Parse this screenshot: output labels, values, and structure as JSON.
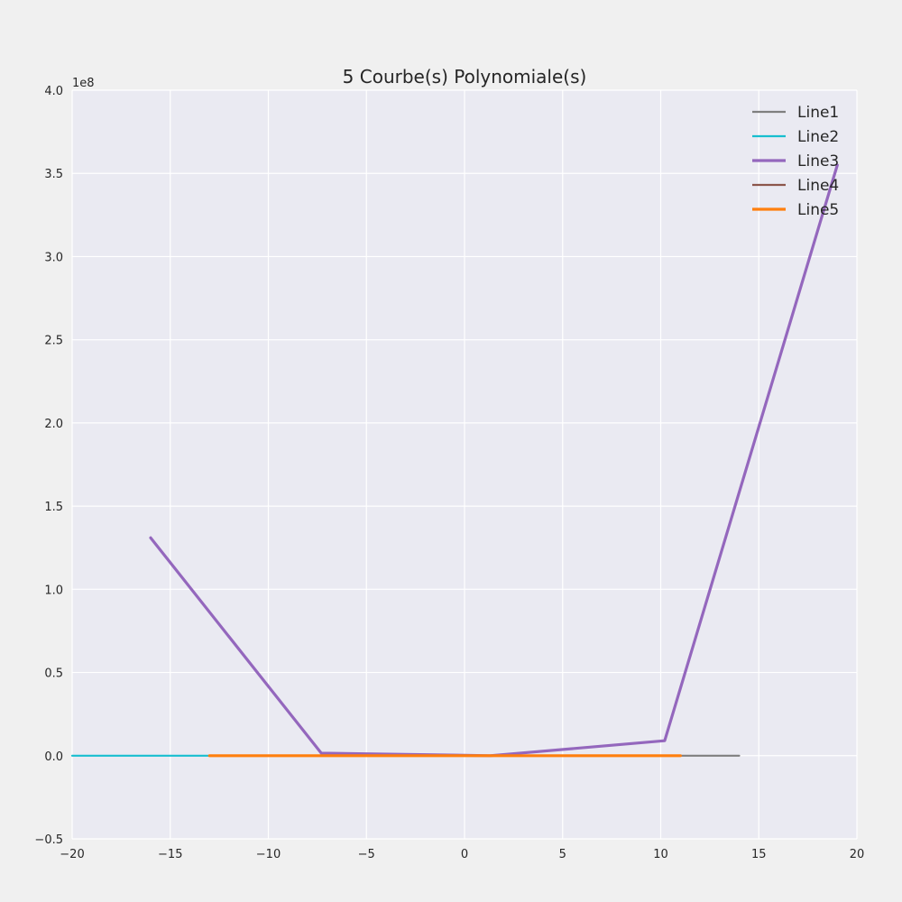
{
  "chart_data": {
    "type": "line",
    "title": "5 Courbe(s) Polynomiale(s)",
    "xlabel": "",
    "ylabel": "",
    "y_offset_label": "1e8",
    "xlim": [
      -20,
      20
    ],
    "ylim": [
      -0.5,
      4.0
    ],
    "y_scale_factor": 100000000,
    "x_ticks": [
      -20,
      -15,
      -10,
      -5,
      0,
      5,
      10,
      15,
      20
    ],
    "x_tick_labels": [
      "−20",
      "−15",
      "−10",
      "−5",
      "0",
      "5",
      "10",
      "15",
      "20"
    ],
    "y_ticks": [
      -0.5,
      0.0,
      0.5,
      1.0,
      1.5,
      2.0,
      2.5,
      3.0,
      3.5,
      4.0
    ],
    "y_tick_labels": [
      "−0.5",
      "0.0",
      "0.5",
      "1.0",
      "1.5",
      "2.0",
      "2.5",
      "3.0",
      "3.5",
      "4.0"
    ],
    "grid": true,
    "legend_position": "top-right",
    "series": [
      {
        "name": "Line1",
        "color": "#7f7f7f",
        "width": 2.2,
        "x": [
          -13,
          -7.4,
          1.3,
          10.2,
          14
        ],
        "y": [
          0,
          0,
          0,
          0,
          0
        ]
      },
      {
        "name": "Line2",
        "color": "#17becf",
        "width": 2.2,
        "x": [
          -20,
          -13
        ],
        "y": [
          0,
          0
        ]
      },
      {
        "name": "Line3",
        "color": "#9467bd",
        "width": 3.2,
        "x": [
          -16,
          -7.3,
          1.3,
          10.2,
          19
        ],
        "y": [
          1.31,
          0.015,
          0.0,
          0.09,
          3.55
        ]
      },
      {
        "name": "Line4",
        "color": "#8c564b",
        "width": 2.2,
        "x": [
          -13,
          11
        ],
        "y": [
          0,
          0
        ]
      },
      {
        "name": "Line5",
        "color": "#ff7f0e",
        "width": 3.2,
        "x": [
          -13,
          -7.4,
          1.3,
          11
        ],
        "y": [
          0,
          0,
          0,
          0
        ]
      }
    ]
  }
}
